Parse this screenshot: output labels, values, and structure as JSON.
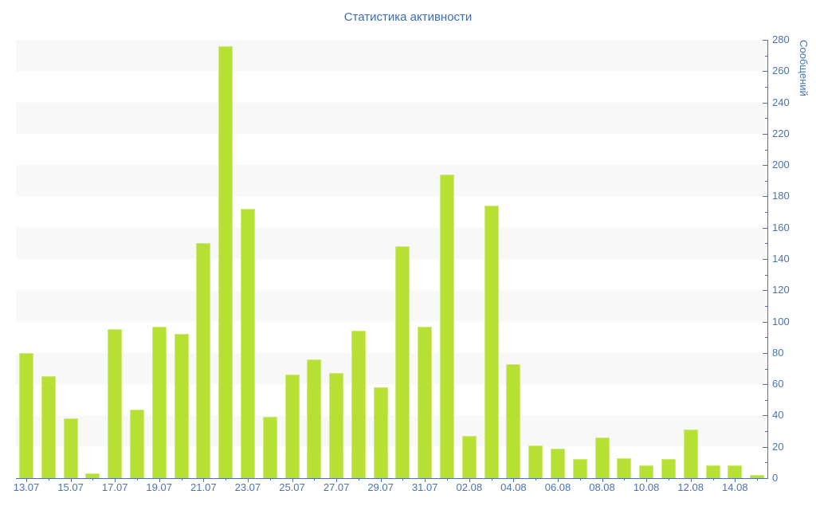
{
  "title": "Статистика активности",
  "chart_data": {
    "type": "bar",
    "title": "Статистика активности",
    "ylabel": "Сообщений",
    "xlabel": "",
    "ylim": [
      0,
      280
    ],
    "y_tick_step": 20,
    "y_minor_tick_step": 10,
    "y_tick_labels": [
      "0",
      "20",
      "40",
      "60",
      "80",
      "100",
      "120",
      "140",
      "160",
      "180",
      "200",
      "220",
      "240",
      "260",
      "280"
    ],
    "x_tick_labels": [
      "13.07",
      "15.07",
      "17.07",
      "19.07",
      "21.07",
      "23.07",
      "25.07",
      "27.07",
      "29.07",
      "31.07",
      "02.08",
      "04.08",
      "06.08",
      "08.08",
      "10.08",
      "12.08",
      "14.08"
    ],
    "x_label_every_n_bars": 2,
    "n_bars": 34,
    "values": [
      80,
      65,
      38,
      3,
      95,
      44,
      97,
      92,
      150,
      276,
      172,
      39,
      66,
      76,
      67,
      94,
      58,
      148,
      97,
      194,
      27,
      174,
      73,
      21,
      19,
      12,
      26,
      13,
      8,
      12,
      31,
      8,
      8,
      2
    ],
    "legend_position": "none",
    "grid": "alternating horizontal bands every 20 units",
    "colors": {
      "bar_fill": "#b7e034",
      "bar_border": "#d0ea80",
      "band_gray": "#f8f8f8",
      "band_white": "#ffffff",
      "axis": "#4a72b4",
      "tick_text": "#4a72b4",
      "title_text": "#3e6cb2"
    }
  }
}
